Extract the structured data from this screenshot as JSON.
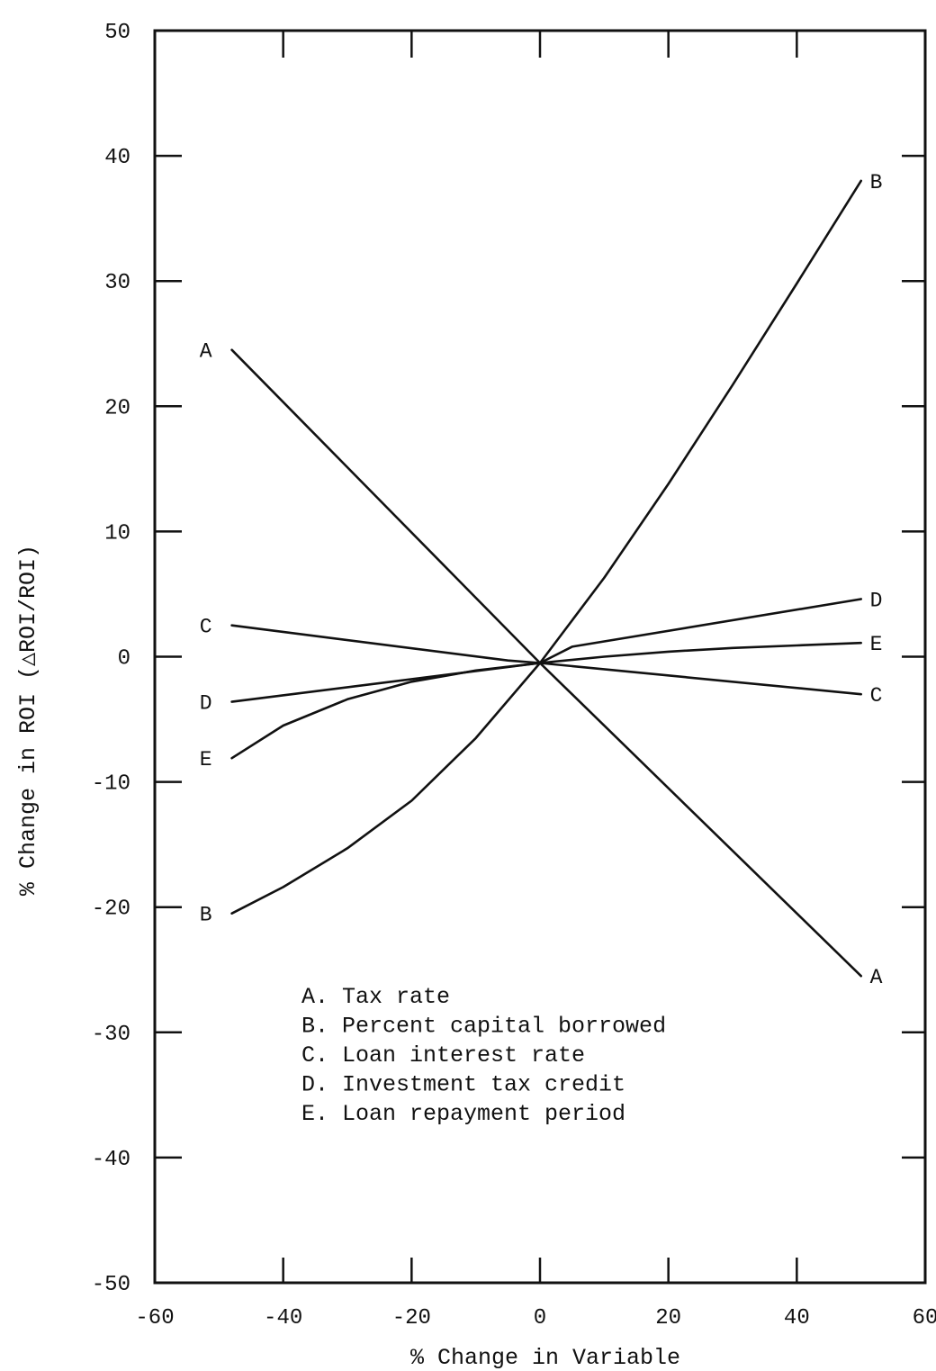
{
  "chart_data": {
    "type": "line",
    "title": "",
    "xlabel": "% Change in Variable",
    "ylabel": "% Change in ROI (△ROI/ROI)",
    "xlim": [
      -60,
      60
    ],
    "ylim": [
      -50,
      50
    ],
    "xticks": [
      -60,
      -40,
      -20,
      0,
      20,
      40,
      60
    ],
    "yticks": [
      50,
      40,
      30,
      20,
      10,
      0,
      -10,
      -20,
      -30,
      -40,
      -50
    ],
    "grid": false,
    "legend_position": "lower-center",
    "series": [
      {
        "id": "A",
        "name": "Tax rate",
        "x": [
          -48,
          0,
          50
        ],
        "y": [
          24.5,
          -0.5,
          -25.5
        ]
      },
      {
        "id": "B",
        "name": "Percent capital borrowed",
        "x": [
          -48,
          -40,
          -30,
          -20,
          -10,
          0,
          10,
          20,
          30,
          40,
          50
        ],
        "y": [
          -20.5,
          -18.4,
          -15.3,
          -11.5,
          -6.5,
          -0.5,
          6.3,
          13.8,
          21.7,
          29.8,
          38
        ]
      },
      {
        "id": "C",
        "name": "Loan interest rate",
        "x": [
          -48,
          -5,
          0,
          50
        ],
        "y": [
          2.5,
          -0.3,
          -0.5,
          -3
        ]
      },
      {
        "id": "D",
        "name": "Investment tax credit",
        "x": [
          -48,
          0,
          5,
          50
        ],
        "y": [
          -3.6,
          -0.5,
          0.8,
          4.6
        ]
      },
      {
        "id": "E",
        "name": "Loan repayment period",
        "x": [
          -48,
          -40,
          -30,
          -20,
          -10,
          0,
          10,
          20,
          30,
          40,
          50
        ],
        "y": [
          -8.1,
          -5.5,
          -3.4,
          -2,
          -1.1,
          -0.5,
          0,
          0.4,
          0.7,
          0.9,
          1.1
        ]
      }
    ],
    "legend": [
      "A. Tax rate",
      "B. Percent capital borrowed",
      "C. Loan interest rate",
      "D. Investment tax credit",
      "E. Loan repayment period"
    ]
  }
}
